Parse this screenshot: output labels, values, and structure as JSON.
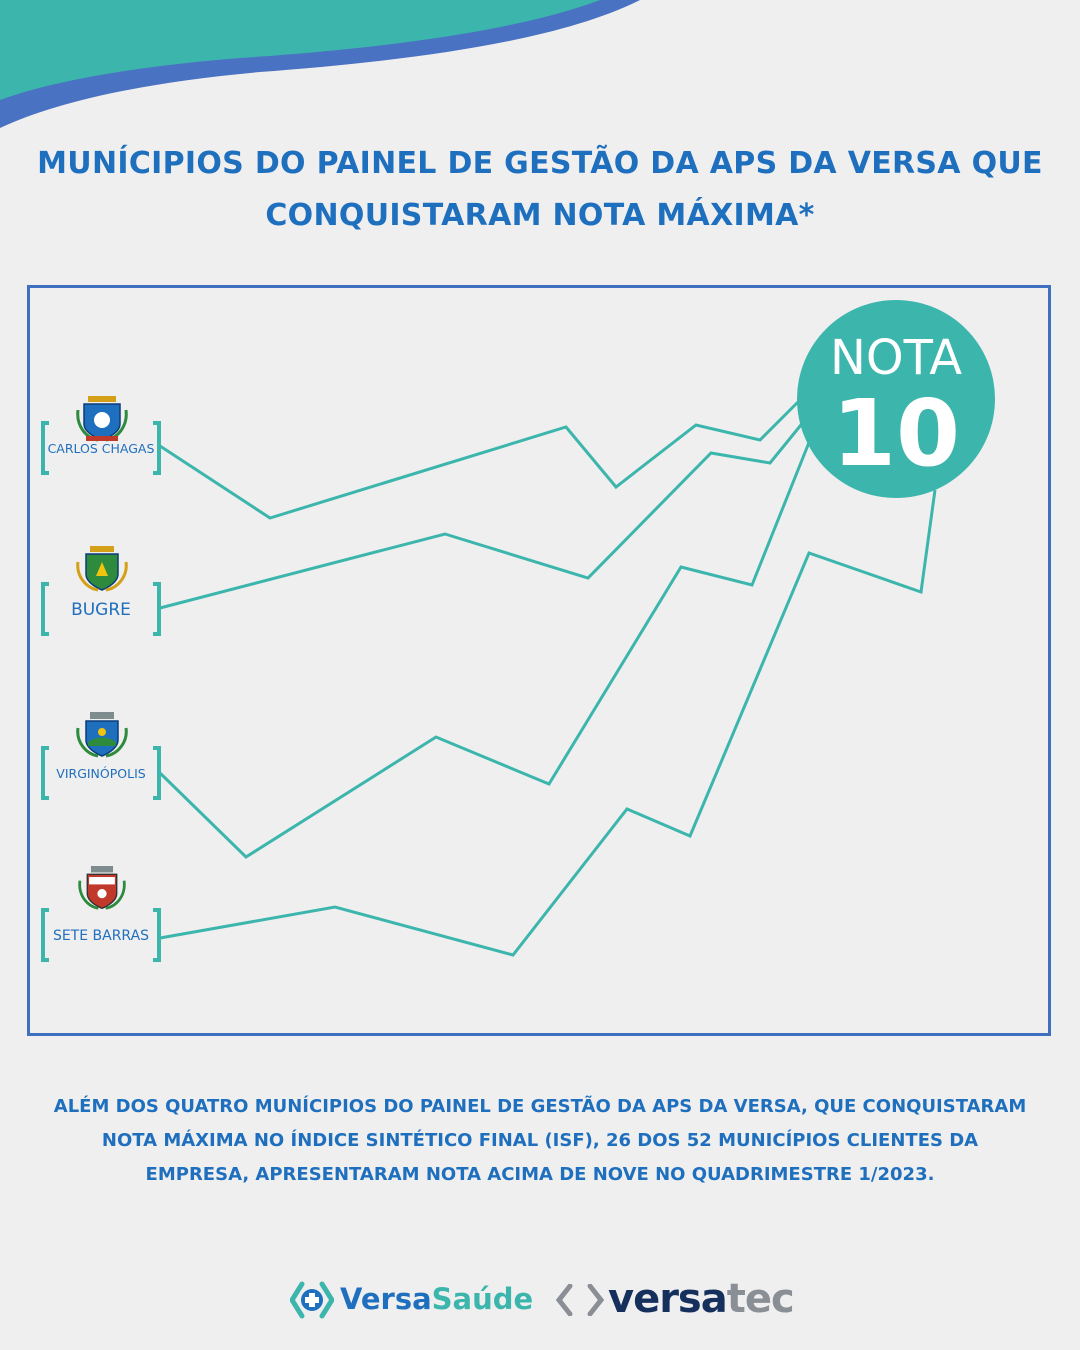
{
  "colors": {
    "accent_teal": "#3cb6ad",
    "accent_blue": "#1f6fbf",
    "frame_blue": "#3f6fbf",
    "background": "#efefef"
  },
  "title": {
    "line1": "MUNÍCIPIOS DO PAINEL DE GESTÃO DA APS DA VERSA QUE",
    "line2": "CONQUISTARAM NOTA MÁXIMA*"
  },
  "municipalities": [
    {
      "name": "CARLOS CHAGAS",
      "crest": "carlos-chagas-crest-icon"
    },
    {
      "name": "BUGRE",
      "crest": "bugre-crest-icon"
    },
    {
      "name": "VIRGINÓPOLIS",
      "crest": "virginopolis-crest-icon"
    },
    {
      "name": "SETE BARRAS",
      "crest": "sete-barras-crest-icon"
    }
  ],
  "badge": {
    "line1": "NOTA",
    "line2": "10"
  },
  "footer": {
    "line1": "ALÉM DOS QUATRO MUNÍCIPIOS DO PAINEL DE GESTÃO DA APS DA VERSA, QUE CONQUISTARAM",
    "line2": "NOTA MÁXIMA NO ÍNDICE SINTÉTICO FINAL (ISF), 26 DOS 52 MUNICÍPIOS CLIENTES DA",
    "line3": "EMPRESA, APRESENTARAM NOTA ACIMA DE NOVE NO QUADRIMESTRE 1/2023."
  },
  "logos": {
    "versasaude_part1": "Versa",
    "versasaude_part2": "Saúde",
    "versatec_part1": "versa",
    "versatec_part2": "tec"
  }
}
